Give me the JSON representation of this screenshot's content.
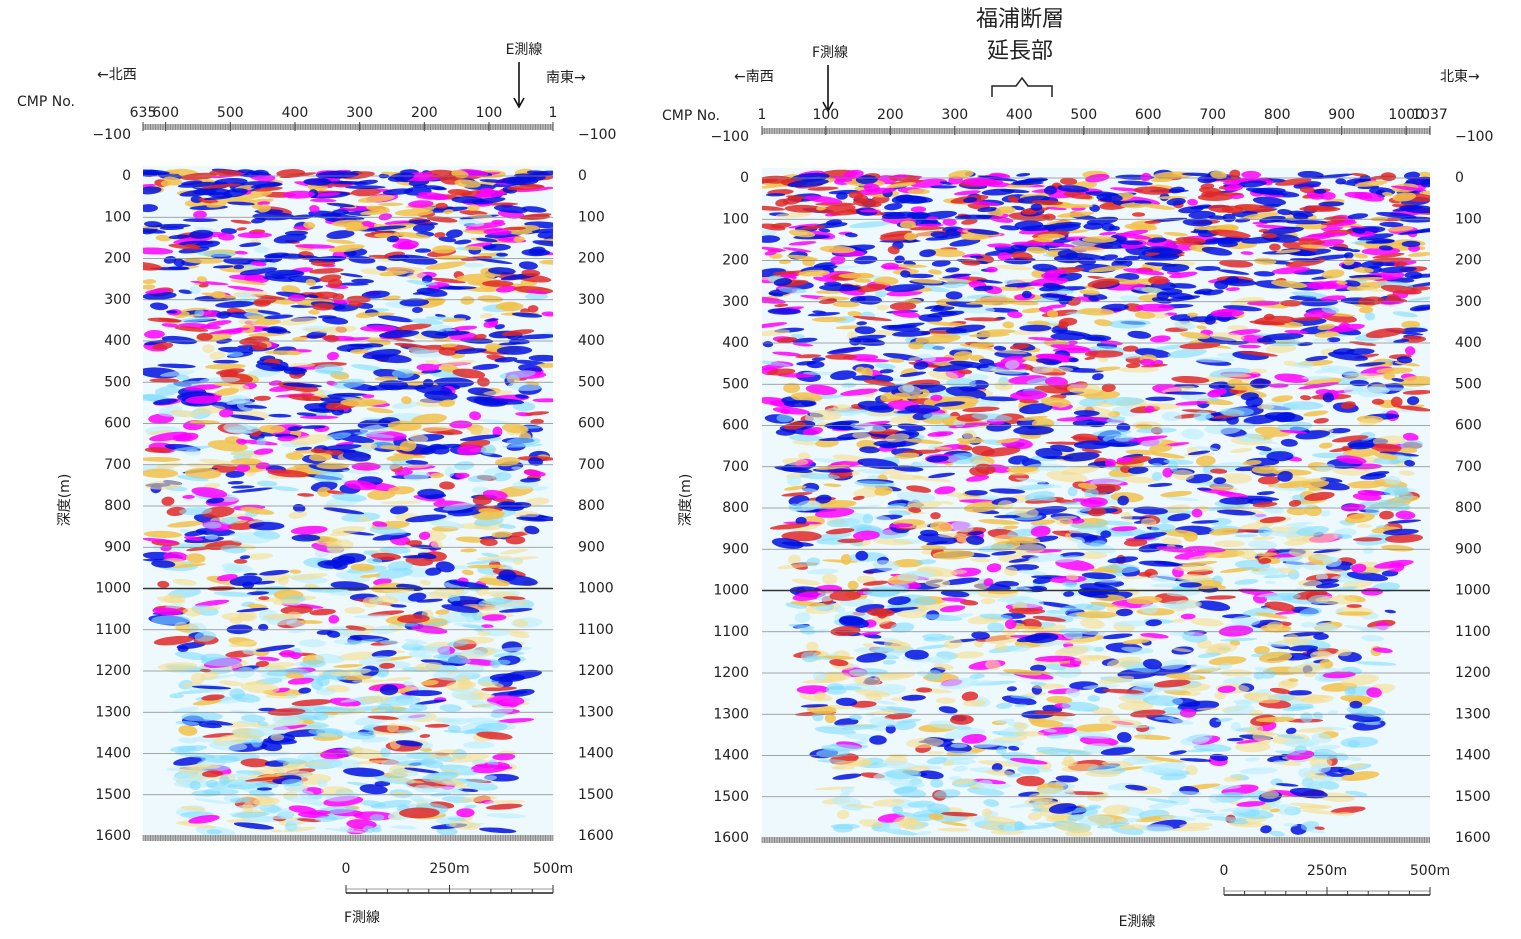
{
  "annotation": {
    "line1": "福浦断層",
    "line2": "延長部"
  },
  "panels": [
    {
      "direction_left": "←北西",
      "direction_right": "南東→",
      "cross_line": "E測線",
      "cmp_label": "CMP No.",
      "cmp_ticks": [
        635,
        600,
        500,
        400,
        300,
        200,
        100,
        1
      ],
      "depth_ticks": [
        {
          "value": -100,
          "label": "−100"
        },
        0,
        100,
        200,
        300,
        400,
        500,
        600,
        700,
        800,
        900,
        1000,
        1100,
        1200,
        1300,
        1400,
        1500,
        1600
      ],
      "depth_label": "深度(m)",
      "scale_ticks": [
        "0",
        "250m",
        "500m"
      ],
      "line_name": "F測線"
    },
    {
      "direction_left": "←南西",
      "direction_right": "北東→",
      "cross_line": "F測線",
      "cmp_label": "CMP No.",
      "cmp_ticks": [
        1,
        100,
        200,
        300,
        400,
        500,
        600,
        700,
        800,
        900,
        1000,
        1037
      ],
      "depth_ticks": [
        {
          "value": -100,
          "label": "−100"
        },
        0,
        100,
        200,
        300,
        400,
        500,
        600,
        700,
        800,
        900,
        1000,
        1100,
        1200,
        1300,
        1400,
        1500,
        1600
      ],
      "depth_label": "深度(m)",
      "scale_ticks": [
        "0",
        "250m",
        "500m"
      ],
      "line_name": "E測線"
    }
  ]
}
